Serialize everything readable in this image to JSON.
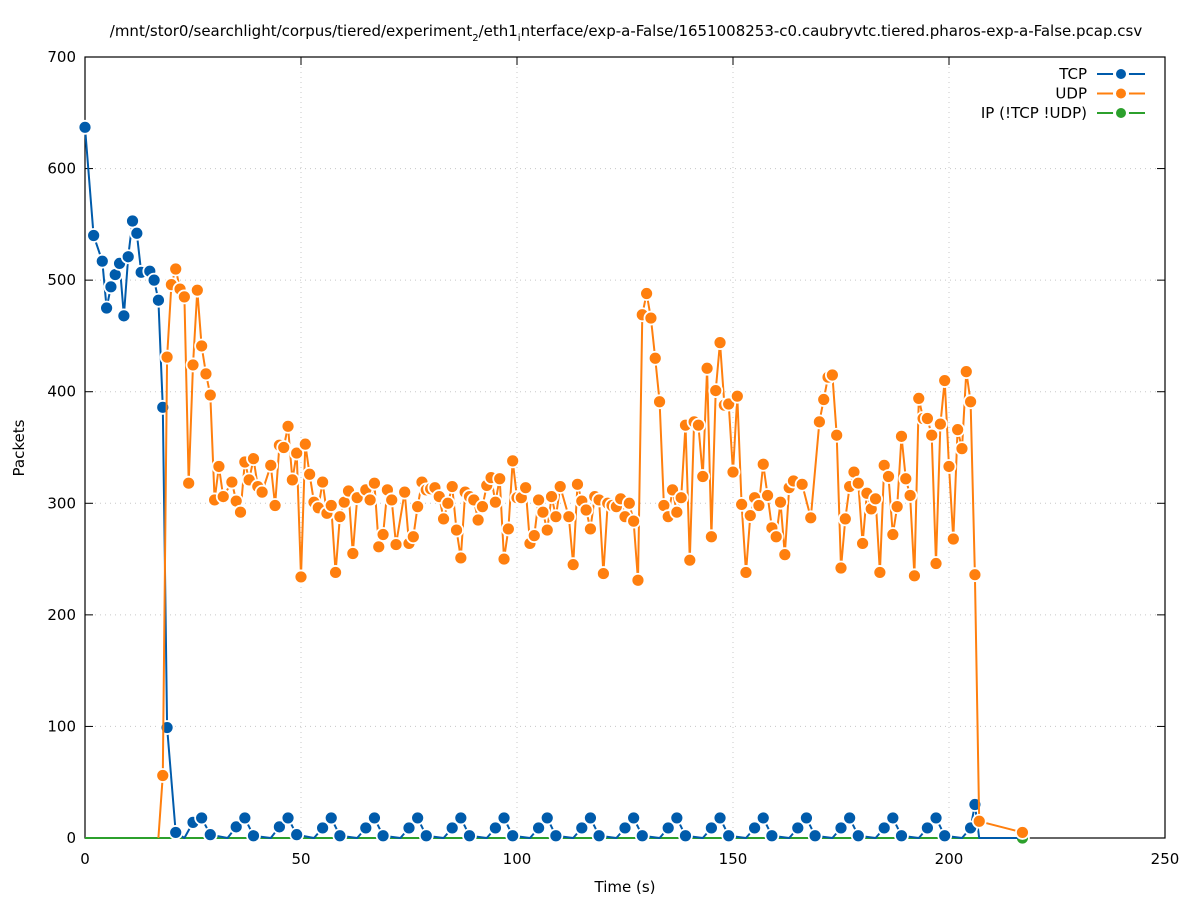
{
  "chart_data": {
    "type": "line",
    "title": "/mnt/stor0/searchlight/corpus/tiered/experiment_2/eth1_interface/exp-a-False/1651008253-c0.caubryvtc.tiered.pharos-exp-a-False.pcap.csv",
    "title_parts": [
      "/mnt/stor0/searchlight/corpus/tiered/experiment",
      "2",
      "/eth1",
      "i",
      "nterface/exp-a-False/1651008253-c0.caubryvtc.tiered.pharos-exp-a-False.pcap.csv"
    ],
    "xlabel": "Time (s)",
    "ylabel": "Packets",
    "xlim": [
      0,
      250
    ],
    "ylim": [
      0,
      700
    ],
    "xticks": [
      0,
      50,
      100,
      150,
      200,
      250
    ],
    "yticks": [
      0,
      100,
      200,
      300,
      400,
      500,
      600,
      700
    ],
    "grid": true,
    "legend_position": "top-right",
    "series": [
      {
        "name": "TCP",
        "color": "#005bab",
        "points": [
          [
            0,
            637
          ],
          [
            2,
            540
          ],
          [
            4,
            517
          ],
          [
            5,
            475
          ],
          [
            6,
            494
          ],
          [
            7,
            505
          ],
          [
            8,
            515
          ],
          [
            9,
            468
          ],
          [
            10,
            521
          ],
          [
            11,
            553
          ],
          [
            12,
            542
          ],
          [
            13,
            507
          ],
          [
            15,
            508
          ],
          [
            16,
            500
          ],
          [
            17,
            482
          ],
          [
            18,
            386
          ],
          [
            19,
            99
          ],
          [
            21,
            5
          ],
          [
            23,
            0
          ],
          [
            25,
            14
          ],
          [
            27,
            18
          ],
          [
            29,
            3
          ],
          [
            33,
            0
          ],
          [
            35,
            10
          ],
          [
            37,
            18
          ],
          [
            39,
            2
          ],
          [
            43,
            0
          ],
          [
            45,
            10
          ],
          [
            47,
            18
          ],
          [
            49,
            3
          ],
          [
            53,
            0
          ],
          [
            55,
            9
          ],
          [
            57,
            18
          ],
          [
            59,
            2
          ],
          [
            63,
            0
          ],
          [
            65,
            9
          ],
          [
            67,
            18
          ],
          [
            69,
            2
          ],
          [
            73,
            0
          ],
          [
            75,
            9
          ],
          [
            77,
            18
          ],
          [
            79,
            2
          ],
          [
            83,
            0
          ],
          [
            85,
            9
          ],
          [
            87,
            18
          ],
          [
            89,
            2
          ],
          [
            93,
            0
          ],
          [
            95,
            9
          ],
          [
            97,
            18
          ],
          [
            99,
            2
          ],
          [
            103,
            0
          ],
          [
            105,
            9
          ],
          [
            107,
            18
          ],
          [
            109,
            2
          ],
          [
            113,
            0
          ],
          [
            115,
            9
          ],
          [
            117,
            18
          ],
          [
            119,
            2
          ],
          [
            123,
            0
          ],
          [
            125,
            9
          ],
          [
            127,
            18
          ],
          [
            129,
            2
          ],
          [
            133,
            0
          ],
          [
            135,
            9
          ],
          [
            137,
            18
          ],
          [
            139,
            2
          ],
          [
            143,
            0
          ],
          [
            145,
            9
          ],
          [
            147,
            18
          ],
          [
            149,
            2
          ],
          [
            153,
            0
          ],
          [
            155,
            9
          ],
          [
            157,
            18
          ],
          [
            159,
            2
          ],
          [
            163,
            0
          ],
          [
            165,
            9
          ],
          [
            167,
            18
          ],
          [
            169,
            2
          ],
          [
            173,
            0
          ],
          [
            175,
            9
          ],
          [
            177,
            18
          ],
          [
            179,
            2
          ],
          [
            183,
            0
          ],
          [
            185,
            9
          ],
          [
            187,
            18
          ],
          [
            189,
            2
          ],
          [
            193,
            0
          ],
          [
            195,
            9
          ],
          [
            197,
            18
          ],
          [
            199,
            2
          ],
          [
            203,
            0
          ],
          [
            205,
            9
          ],
          [
            206,
            30
          ],
          [
            207,
            0
          ],
          [
            217,
            0
          ]
        ]
      },
      {
        "name": "UDP",
        "color": "#ff7f0e",
        "points": [
          [
            17,
            0
          ],
          [
            18,
            56
          ],
          [
            19,
            431
          ],
          [
            20,
            496
          ],
          [
            21,
            510
          ],
          [
            22,
            492
          ],
          [
            23,
            485
          ],
          [
            24,
            318
          ],
          [
            25,
            424
          ],
          [
            26,
            491
          ],
          [
            27,
            441
          ],
          [
            28,
            416
          ],
          [
            29,
            397
          ],
          [
            30,
            303
          ],
          [
            31,
            333
          ],
          [
            32,
            306
          ],
          [
            34,
            319
          ],
          [
            35,
            302
          ],
          [
            36,
            292
          ],
          [
            37,
            337
          ],
          [
            38,
            321
          ],
          [
            39,
            340
          ],
          [
            40,
            315
          ],
          [
            41,
            310
          ],
          [
            43,
            334
          ],
          [
            44,
            298
          ],
          [
            45,
            352
          ],
          [
            46,
            350
          ],
          [
            47,
            369
          ],
          [
            48,
            321
          ],
          [
            49,
            345
          ],
          [
            50,
            234
          ],
          [
            51,
            353
          ],
          [
            52,
            326
          ],
          [
            53,
            301
          ],
          [
            54,
            296
          ],
          [
            55,
            319
          ],
          [
            56,
            291
          ],
          [
            57,
            298
          ],
          [
            58,
            238
          ],
          [
            59,
            288
          ],
          [
            60,
            301
          ],
          [
            61,
            311
          ],
          [
            62,
            255
          ],
          [
            63,
            305
          ],
          [
            65,
            312
          ],
          [
            66,
            303
          ],
          [
            67,
            318
          ],
          [
            68,
            261
          ],
          [
            69,
            272
          ],
          [
            70,
            312
          ],
          [
            71,
            303
          ],
          [
            72,
            263
          ],
          [
            74,
            310
          ],
          [
            75,
            264
          ],
          [
            76,
            270
          ],
          [
            77,
            297
          ],
          [
            78,
            319
          ],
          [
            79,
            312
          ],
          [
            80,
            313
          ],
          [
            81,
            314
          ],
          [
            82,
            306
          ],
          [
            83,
            286
          ],
          [
            84,
            300
          ],
          [
            85,
            315
          ],
          [
            86,
            276
          ],
          [
            87,
            251
          ],
          [
            88,
            310
          ],
          [
            89,
            306
          ],
          [
            90,
            303
          ],
          [
            91,
            285
          ],
          [
            92,
            297
          ],
          [
            93,
            316
          ],
          [
            94,
            323
          ],
          [
            95,
            301
          ],
          [
            96,
            322
          ],
          [
            97,
            250
          ],
          [
            98,
            277
          ],
          [
            99,
            338
          ],
          [
            100,
            305
          ],
          [
            101,
            305
          ],
          [
            102,
            314
          ],
          [
            103,
            264
          ],
          [
            104,
            271
          ],
          [
            105,
            303
          ],
          [
            106,
            292
          ],
          [
            107,
            276
          ],
          [
            108,
            306
          ],
          [
            109,
            288
          ],
          [
            110,
            315
          ],
          [
            112,
            288
          ],
          [
            113,
            245
          ],
          [
            114,
            317
          ],
          [
            115,
            302
          ],
          [
            116,
            294
          ],
          [
            117,
            277
          ],
          [
            118,
            306
          ],
          [
            119,
            303
          ],
          [
            120,
            237
          ],
          [
            121,
            300
          ],
          [
            122,
            298
          ],
          [
            123,
            297
          ],
          [
            124,
            304
          ],
          [
            125,
            288
          ],
          [
            126,
            300
          ],
          [
            127,
            284
          ],
          [
            128,
            231
          ],
          [
            129,
            469
          ],
          [
            130,
            488
          ],
          [
            131,
            466
          ],
          [
            132,
            430
          ],
          [
            133,
            391
          ],
          [
            134,
            298
          ],
          [
            135,
            288
          ],
          [
            136,
            312
          ],
          [
            137,
            292
          ],
          [
            138,
            305
          ],
          [
            139,
            370
          ],
          [
            140,
            249
          ],
          [
            141,
            373
          ],
          [
            142,
            370
          ],
          [
            143,
            324
          ],
          [
            144,
            421
          ],
          [
            145,
            270
          ],
          [
            146,
            401
          ],
          [
            147,
            444
          ],
          [
            148,
            388
          ],
          [
            149,
            389
          ],
          [
            150,
            328
          ],
          [
            151,
            396
          ],
          [
            152,
            299
          ],
          [
            153,
            238
          ],
          [
            154,
            289
          ],
          [
            155,
            305
          ],
          [
            156,
            298
          ],
          [
            157,
            335
          ],
          [
            158,
            307
          ],
          [
            159,
            278
          ],
          [
            160,
            270
          ],
          [
            161,
            301
          ],
          [
            162,
            254
          ],
          [
            163,
            314
          ],
          [
            164,
            320
          ],
          [
            166,
            317
          ],
          [
            168,
            287
          ],
          [
            170,
            373
          ],
          [
            171,
            393
          ],
          [
            172,
            413
          ],
          [
            173,
            415
          ],
          [
            174,
            361
          ],
          [
            175,
            242
          ],
          [
            176,
            286
          ],
          [
            177,
            315
          ],
          [
            178,
            328
          ],
          [
            179,
            318
          ],
          [
            180,
            264
          ],
          [
            181,
            309
          ],
          [
            182,
            295
          ],
          [
            183,
            304
          ],
          [
            184,
            238
          ],
          [
            185,
            334
          ],
          [
            186,
            324
          ],
          [
            187,
            272
          ],
          [
            188,
            297
          ],
          [
            189,
            360
          ],
          [
            190,
            322
          ],
          [
            191,
            307
          ],
          [
            192,
            235
          ],
          [
            193,
            394
          ],
          [
            194,
            376
          ],
          [
            195,
            376
          ],
          [
            196,
            361
          ],
          [
            197,
            246
          ],
          [
            198,
            371
          ],
          [
            199,
            410
          ],
          [
            200,
            333
          ],
          [
            201,
            268
          ],
          [
            202,
            366
          ],
          [
            203,
            349
          ],
          [
            204,
            418
          ],
          [
            205,
            391
          ],
          [
            206,
            236
          ],
          [
            207,
            15
          ],
          [
            217,
            5
          ]
        ]
      },
      {
        "name": "IP (!TCP  !UDP)",
        "color": "#2ca02c",
        "points": [
          [
            0,
            0
          ],
          [
            217,
            0
          ]
        ]
      }
    ]
  }
}
